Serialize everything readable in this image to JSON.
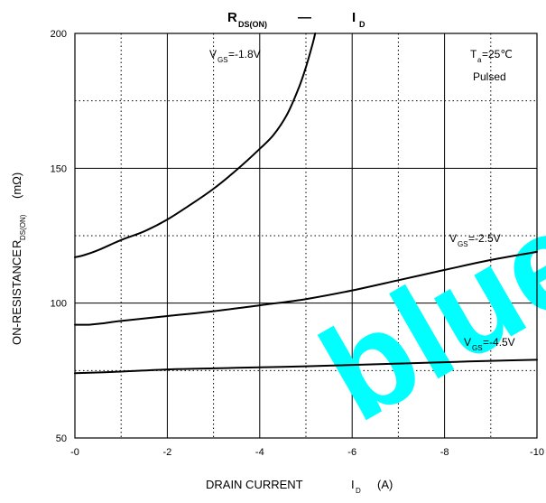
{
  "chart_data": {
    "type": "line",
    "title": {
      "main": "R",
      "main_sub": "DS(ON)",
      "dash": "—",
      "right": "I",
      "right_sub": "D"
    },
    "xlabel": {
      "text": "DRAIN CURRENT",
      "symbol": "I",
      "symbol_sub": "D",
      "unit": "(A)"
    },
    "ylabel": {
      "text": "ON-RESISTANCE",
      "symbol": "R",
      "symbol_sub": "DS(ON)",
      "unit": "(mΩ)"
    },
    "xlim": [
      0,
      -10
    ],
    "ylim": [
      50,
      200
    ],
    "x_ticks": [
      {
        "value": 0,
        "label": "-0"
      },
      {
        "value": -2,
        "label": "-2"
      },
      {
        "value": -4,
        "label": "-4"
      },
      {
        "value": -6,
        "label": "-6"
      },
      {
        "value": -8,
        "label": "-8"
      },
      {
        "value": -10,
        "label": "-10"
      }
    ],
    "y_ticks": [
      {
        "value": 50,
        "label": "50"
      },
      {
        "value": 100,
        "label": "100"
      },
      {
        "value": 150,
        "label": "150"
      },
      {
        "value": 200,
        "label": "200"
      }
    ],
    "minor_x": [
      -1,
      -3,
      -5,
      -7,
      -9
    ],
    "minor_y": [
      75,
      125,
      175
    ],
    "grid": true,
    "annotations": [
      {
        "id": "vgs-18",
        "main": "V",
        "sub": "GS",
        "rest": "=-1.8V"
      },
      {
        "id": "vgs-25",
        "main": "V",
        "sub": "GS",
        "rest": "=-2.5V"
      },
      {
        "id": "vgs-45",
        "main": "V",
        "sub": "GS",
        "rest": "=-4.5V"
      },
      {
        "id": "ta",
        "main": "T",
        "sub": "a",
        "rest": "=25℃"
      },
      {
        "id": "pulsed",
        "main": "Pulsed",
        "sub": "",
        "rest": ""
      }
    ],
    "watermark": "blue",
    "series": [
      {
        "id": "vgs-18",
        "color": "#000000",
        "points": [
          [
            0,
            117
          ],
          [
            -0.2,
            117.8
          ],
          [
            -0.5,
            119.6
          ],
          [
            -1,
            123.4
          ],
          [
            -1.5,
            126.6
          ],
          [
            -2,
            131
          ],
          [
            -2.5,
            136.5
          ],
          [
            -3,
            142.4
          ],
          [
            -3.5,
            149.4
          ],
          [
            -4,
            157.2
          ],
          [
            -4.3,
            162.4
          ],
          [
            -4.6,
            170.2
          ],
          [
            -4.85,
            180
          ],
          [
            -5,
            187.5
          ],
          [
            -5.15,
            196.5
          ],
          [
            -5.2,
            200
          ]
        ]
      },
      {
        "id": "vgs-25",
        "color": "#000000",
        "points": [
          [
            0,
            92
          ],
          [
            -0.3,
            92
          ],
          [
            -0.6,
            92.5
          ],
          [
            -1,
            93.4
          ],
          [
            -2,
            95.2
          ],
          [
            -3,
            97
          ],
          [
            -4,
            99.2
          ],
          [
            -5,
            101.5
          ],
          [
            -6,
            104.7
          ],
          [
            -7,
            108.5
          ],
          [
            -8,
            112.3
          ],
          [
            -9,
            116
          ],
          [
            -10,
            119
          ]
        ]
      },
      {
        "id": "vgs-45",
        "color": "#000000",
        "points": [
          [
            0,
            74
          ],
          [
            -1,
            74.6
          ],
          [
            -2,
            75.4
          ],
          [
            -3,
            75.8
          ],
          [
            -4,
            76.2
          ],
          [
            -5,
            76.6
          ],
          [
            -6,
            77.1
          ],
          [
            -7,
            77.6
          ],
          [
            -8,
            78.1
          ],
          [
            -9,
            78.6
          ],
          [
            -10,
            79
          ]
        ]
      }
    ]
  }
}
